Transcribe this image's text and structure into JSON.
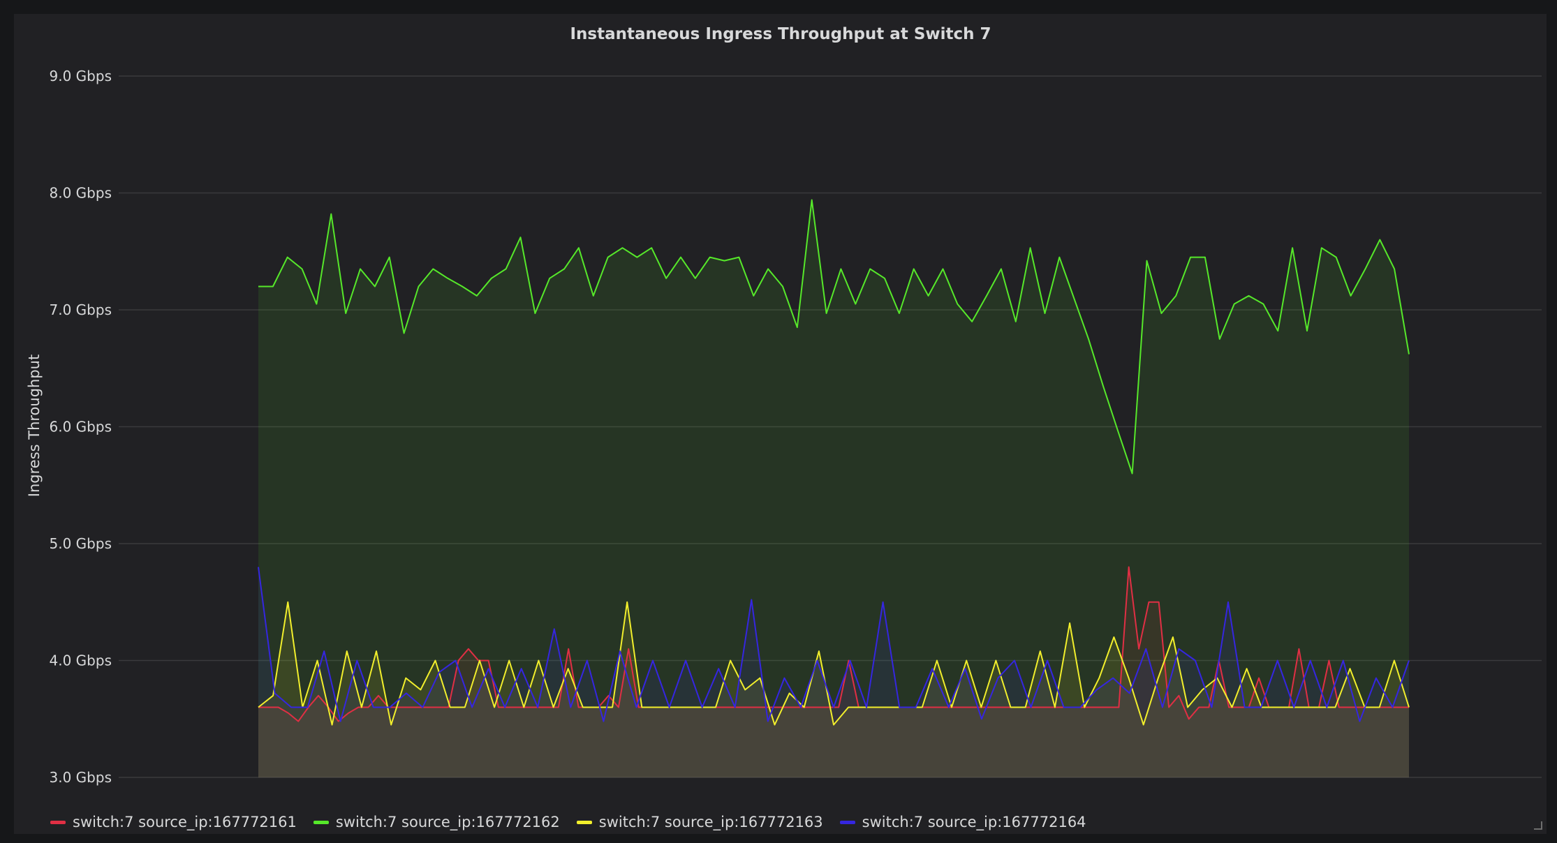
{
  "chart_data": {
    "type": "line",
    "title": "Instantaneous Ingress Throughput at Switch 7",
    "xlabel": "",
    "ylabel": "Ingress Throughput",
    "ylim": [
      3.0,
      9.0
    ],
    "y_unit": "Gbps",
    "y_ticks": [
      "3.0 Gbps",
      "4.0 Gbps",
      "5.0 Gbps",
      "6.0 Gbps",
      "7.0 Gbps",
      "8.0 Gbps",
      "9.0 Gbps"
    ],
    "grid": true,
    "fill": true,
    "legend_position": "bottom-left",
    "series": [
      {
        "name": "switch:7 source_ip:167772161",
        "color": "#e02f44",
        "values": [
          3.6,
          3.6,
          3.6,
          3.55,
          3.48,
          3.6,
          3.7,
          3.6,
          3.48,
          3.55,
          3.6,
          3.6,
          3.7,
          3.6,
          3.6,
          3.6,
          3.6,
          3.6,
          3.6,
          3.6,
          4.0,
          4.1,
          4.0,
          4.0,
          3.6,
          3.6,
          3.6,
          3.6,
          3.6,
          3.6,
          3.6,
          4.1,
          3.6,
          3.6,
          3.6,
          3.7,
          3.6,
          4.1,
          3.6,
          3.6,
          3.6,
          3.6,
          3.6,
          3.6,
          3.6,
          3.6,
          3.6,
          3.6,
          3.6,
          3.6,
          3.6,
          3.6,
          3.6,
          3.6,
          3.6,
          3.6,
          3.6,
          3.6,
          3.6,
          4.0,
          3.6,
          3.6,
          3.6,
          3.6,
          3.6,
          3.6,
          3.6,
          3.6,
          3.6,
          3.6,
          3.6,
          3.6,
          3.6,
          3.6,
          3.6,
          3.6,
          3.6,
          3.6,
          3.6,
          3.6,
          3.6,
          3.6,
          3.6,
          3.6,
          3.6,
          3.6,
          3.6,
          4.8,
          4.1,
          4.5,
          4.5,
          3.6,
          3.7,
          3.5,
          3.6,
          3.6,
          4.0,
          3.6,
          3.6,
          3.6,
          3.85,
          3.6,
          3.6,
          3.6,
          4.1,
          3.6,
          3.6,
          4.0,
          3.6,
          3.6,
          3.6,
          3.6,
          3.6,
          3.6,
          3.6,
          3.6
        ]
      },
      {
        "name": "switch:7 source_ip:167772162",
        "color": "#56e82a",
        "values": [
          7.2,
          7.2,
          7.45,
          7.35,
          7.05,
          7.82,
          6.97,
          7.35,
          7.2,
          7.45,
          6.8,
          7.2,
          7.35,
          7.27,
          7.2,
          7.12,
          7.27,
          7.35,
          7.62,
          6.97,
          7.27,
          7.35,
          7.53,
          7.12,
          7.45,
          7.53,
          7.45,
          7.53,
          7.27,
          7.45,
          7.27,
          7.45,
          7.42,
          7.45,
          7.12,
          7.35,
          7.2,
          6.85,
          7.94,
          6.97,
          7.35,
          7.05,
          7.35,
          7.27,
          6.97,
          7.35,
          7.12,
          7.35,
          7.05,
          6.9,
          7.12,
          7.35,
          6.9,
          7.53,
          6.97,
          7.45,
          7.1,
          6.75,
          6.35,
          5.97,
          5.6,
          7.42,
          6.97,
          7.12,
          7.45,
          7.45,
          6.75,
          7.05,
          7.12,
          7.05,
          6.82,
          7.53,
          6.82,
          7.53,
          7.45,
          7.12,
          7.35,
          7.6,
          7.35,
          6.62
        ]
      },
      {
        "name": "switch:7 source_ip:167772163",
        "color": "#f2ef2c",
        "values": [
          3.6,
          3.7,
          4.5,
          3.6,
          4.0,
          3.45,
          4.08,
          3.6,
          4.08,
          3.45,
          3.85,
          3.75,
          4.0,
          3.6,
          3.6,
          4.0,
          3.6,
          4.0,
          3.6,
          4.0,
          3.6,
          3.93,
          3.6,
          3.6,
          3.6,
          4.5,
          3.6,
          3.6,
          3.6,
          3.6,
          3.6,
          3.6,
          4.0,
          3.75,
          3.85,
          3.45,
          3.72,
          3.6,
          4.08,
          3.45,
          3.6,
          3.6,
          3.6,
          3.6,
          3.6,
          3.6,
          4.0,
          3.6,
          4.0,
          3.6,
          4.0,
          3.6,
          3.6,
          4.08,
          3.6,
          4.32,
          3.6,
          3.85,
          4.2,
          3.85,
          3.45,
          3.85,
          4.2,
          3.6,
          3.75,
          3.85,
          3.6,
          3.93,
          3.6,
          3.6,
          3.6,
          3.6,
          3.6,
          3.6,
          3.93,
          3.6,
          3.6,
          4.0,
          3.6
        ]
      },
      {
        "name": "switch:7 source_ip:167772164",
        "color": "#3526e0",
        "values": [
          4.8,
          3.72,
          3.6,
          3.6,
          4.08,
          3.48,
          4.0,
          3.6,
          3.6,
          3.72,
          3.6,
          3.9,
          4.0,
          3.6,
          3.93,
          3.6,
          3.93,
          3.6,
          4.27,
          3.6,
          4.0,
          3.48,
          4.08,
          3.6,
          4.0,
          3.6,
          4.0,
          3.6,
          3.93,
          3.6,
          4.52,
          3.48,
          3.85,
          3.6,
          4.0,
          3.6,
          4.0,
          3.6,
          4.5,
          3.6,
          3.6,
          3.93,
          3.6,
          3.93,
          3.5,
          3.85,
          4.0,
          3.6,
          4.0,
          3.6,
          3.6,
          3.75,
          3.85,
          3.72,
          4.1,
          3.6,
          4.1,
          4.0,
          3.6,
          4.5,
          3.6,
          3.6,
          4.0,
          3.6,
          4.0,
          3.6,
          4.0,
          3.48,
          3.85,
          3.6,
          4.0
        ]
      }
    ]
  }
}
